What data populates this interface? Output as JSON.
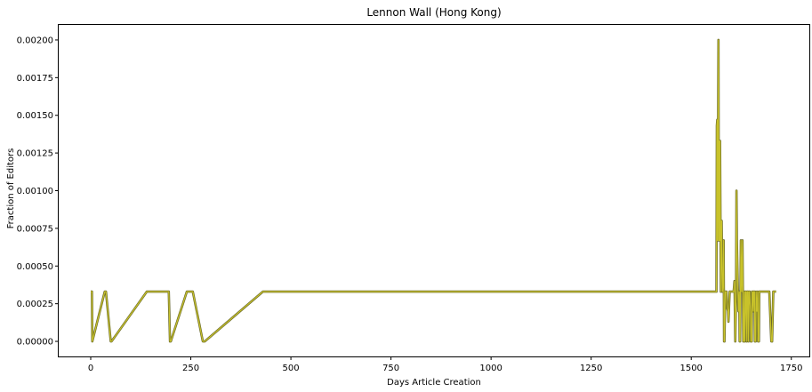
{
  "chart_data": {
    "type": "line",
    "title": "Lennon Wall (Hong Kong)",
    "xlabel": "Days Article Creation",
    "ylabel": "Fraction of Editors",
    "xlim": [
      -80,
      1795
    ],
    "ylim": [
      -0.0001,
      0.0021
    ],
    "xticks": [
      0,
      250,
      500,
      750,
      1000,
      1250,
      1500,
      1750
    ],
    "xtick_labels": [
      "0",
      "250",
      "500",
      "750",
      "1000",
      "1250",
      "1500",
      "1750"
    ],
    "yticks": [
      0,
      0.00025,
      0.0005,
      0.00075,
      0.001,
      0.00125,
      0.0015,
      0.00175,
      0.002
    ],
    "ytick_labels": [
      "0.00000",
      "0.00025",
      "0.00050",
      "0.00075",
      "0.00100",
      "0.00125",
      "0.00150",
      "0.00175",
      "0.00200"
    ],
    "grid": false,
    "legend": "none",
    "line_colors": [
      "#6b6b2a",
      "#c8c22a"
    ],
    "series": [
      {
        "x": [
          0,
          3,
          4,
          35,
          36,
          38,
          50,
          52,
          140,
          195,
          198,
          200,
          240,
          245,
          255,
          280,
          285,
          430,
          435,
          1563,
          1564,
          1565,
          1566,
          1567,
          1568,
          1569,
          1570,
          1571,
          1572,
          1574,
          1576,
          1578,
          1580,
          1581,
          1582,
          1583,
          1585,
          1586,
          1588,
          1590,
          1592,
          1593,
          1596,
          1598,
          1600,
          1604,
          1606,
          1608,
          1610,
          1612,
          1613,
          1614,
          1616,
          1618,
          1620,
          1621,
          1622,
          1623,
          1624,
          1626,
          1628,
          1630,
          1631,
          1633,
          1634,
          1636,
          1637,
          1639,
          1640,
          1642,
          1643,
          1645,
          1646,
          1648,
          1649,
          1651,
          1652,
          1653,
          1655,
          1656,
          1658,
          1659,
          1661,
          1662,
          1664,
          1666,
          1667,
          1669,
          1670,
          1673,
          1676,
          1680,
          1686,
          1688,
          1690,
          1692,
          1695,
          1700,
          1702,
          1705,
          1710,
          1712
        ],
        "values": [
          0.00033,
          0.00033,
          0.0,
          0.00033,
          0.00033,
          0.00033,
          0.0,
          0.0,
          0.00033,
          0.00033,
          0.0,
          0.0,
          0.00033,
          0.00033,
          0.00033,
          0.0,
          0.0,
          0.00033,
          0.00033,
          0.00033,
          0.00143,
          0.00147,
          0.00067,
          0.00133,
          0.002,
          0.00067,
          0.00133,
          0.00067,
          0.00133,
          0.00033,
          0.0008,
          0.00033,
          0.0004,
          0.00067,
          0.0,
          0.0,
          0.00033,
          0.00033,
          0.00033,
          0.00022,
          0.0002,
          0.00013,
          0.00033,
          0.00033,
          0.00033,
          0.00033,
          0.00033,
          0.0004,
          0.0,
          0.00033,
          0.001,
          0.00067,
          0.0004,
          0.0002,
          0.00033,
          0.0,
          0.0,
          0.00033,
          0.00067,
          0.00033,
          0.00067,
          0.0,
          0.0,
          0.00033,
          0.0,
          0.00033,
          0.00033,
          0.0,
          0.00033,
          0.00033,
          0.0,
          0.00033,
          0.00033,
          0.0002,
          0.0,
          0.0,
          0.00033,
          0.00033,
          0.0002,
          0.00033,
          0.00033,
          0.0,
          0.0,
          0.00033,
          0.0002,
          0.00033,
          0.0,
          0.0,
          0.00033,
          0.00033,
          0.00033,
          0.00033,
          0.00033,
          0.00033,
          0.00033,
          0.00033,
          0.00033,
          0.0,
          0.0,
          0.00033,
          0.00033,
          0.00033
        ]
      }
    ]
  }
}
